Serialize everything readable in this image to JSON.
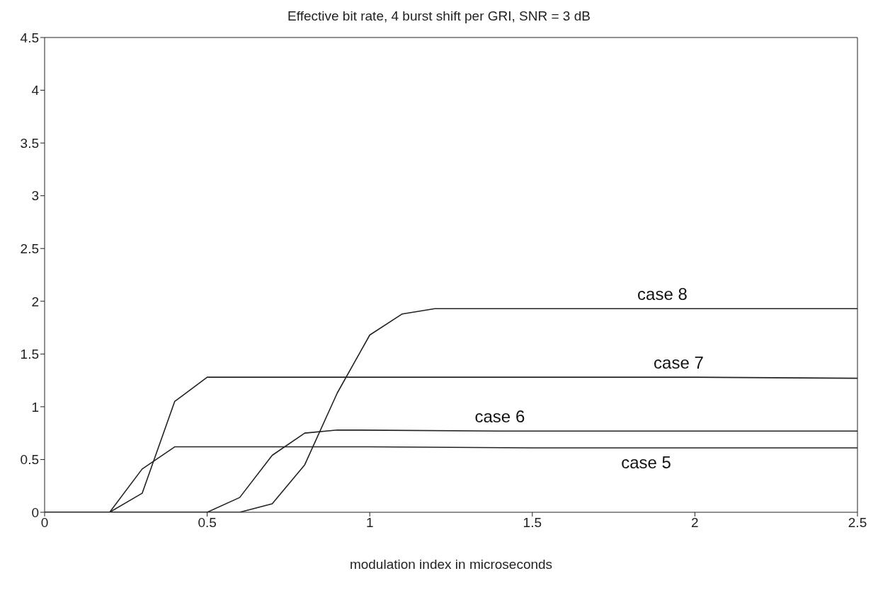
{
  "chart_data": {
    "type": "line",
    "title": "Effective bit rate, 4 burst shift per GRI, SNR = 3 dB",
    "xlabel": "modulation index in microseconds",
    "xlim": [
      0,
      2.5
    ],
    "xticks": [
      0,
      0.5,
      1,
      1.5,
      2,
      2.5
    ],
    "ylim": [
      0,
      4.5
    ],
    "yticks": [
      0,
      0.5,
      1,
      1.5,
      2,
      2.5,
      3,
      3.5,
      4,
      4.5
    ],
    "marker": "none",
    "line_style": "solid",
    "series": [
      {
        "name": "case 5",
        "color": "#222222",
        "x": [
          0,
          0.2,
          0.3,
          0.4,
          0.5,
          1,
          1.5,
          1.85,
          2,
          2.5
        ],
        "values": [
          0,
          0,
          0.41,
          0.62,
          0.62,
          0.62,
          0.61,
          0.61,
          0.61,
          0.61
        ]
      },
      {
        "name": "case 7",
        "color": "#222222",
        "x": [
          0,
          0.2,
          0.3,
          0.4,
          0.5,
          1,
          1.5,
          1.95,
          2,
          2.5
        ],
        "values": [
          0,
          0,
          0.18,
          1.05,
          1.28,
          1.28,
          1.28,
          1.28,
          1.28,
          1.27
        ]
      },
      {
        "name": "case 6",
        "color": "#222222",
        "x": [
          0,
          0.5,
          0.6,
          0.7,
          0.8,
          0.9,
          1.4,
          1.5,
          2,
          2.5
        ],
        "values": [
          0,
          0,
          0.14,
          0.54,
          0.75,
          0.78,
          0.77,
          0.77,
          0.77,
          0.77
        ]
      },
      {
        "name": "case 8",
        "color": "#222222",
        "x": [
          0,
          0.6,
          0.7,
          0.8,
          0.9,
          1,
          1.1,
          1.2,
          1.5,
          1.9,
          2,
          2.5
        ],
        "values": [
          0,
          0,
          0.08,
          0.45,
          1.13,
          1.68,
          1.88,
          1.93,
          1.93,
          1.93,
          1.93,
          1.93
        ]
      }
    ]
  }
}
